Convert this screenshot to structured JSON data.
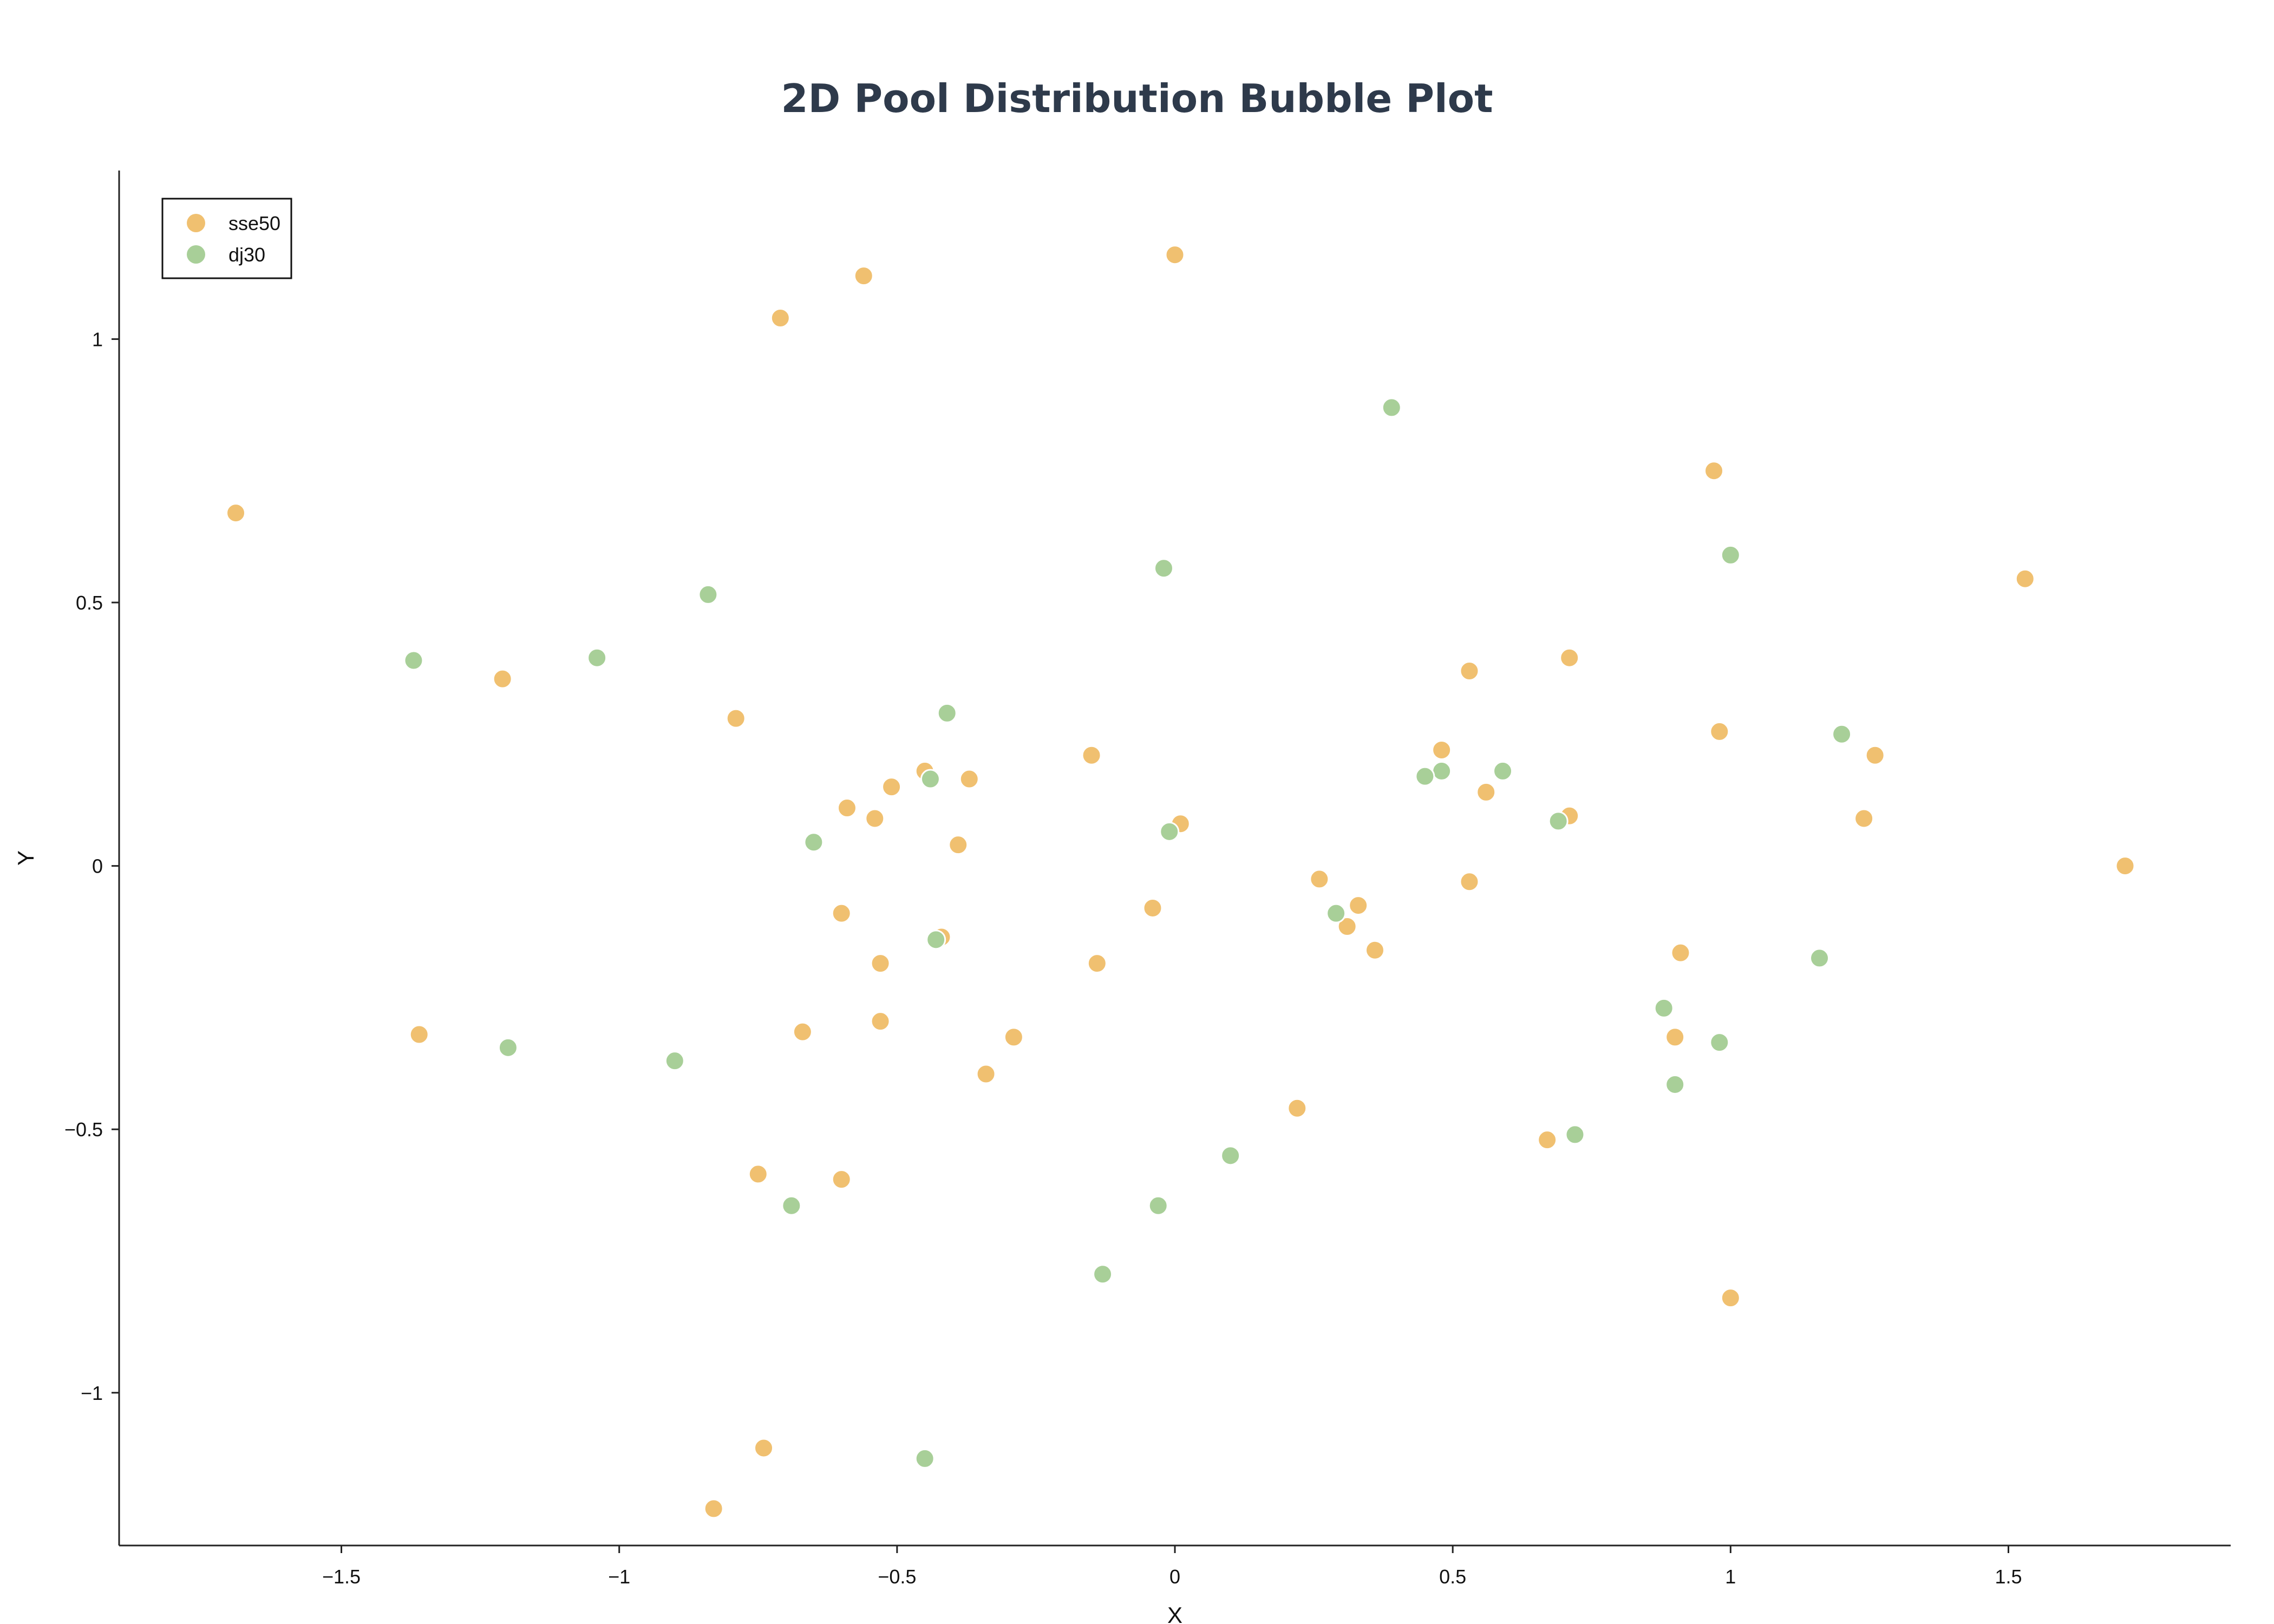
{
  "chart_data": {
    "type": "scatter",
    "title": "2D Pool Distribution Bubble Plot",
    "xlabel": "X",
    "ylabel": "Y",
    "xlim": [
      -1.9,
      1.9
    ],
    "ylim": [
      -1.29,
      1.32
    ],
    "xticks": [
      -1.5,
      -1,
      -0.5,
      0,
      0.5,
      1,
      1.5
    ],
    "xtick_labels": [
      "−1.5",
      "−1",
      "−0.5",
      "0",
      "0.5",
      "1",
      "1.5"
    ],
    "yticks": [
      -1,
      -0.5,
      0,
      0.5,
      1
    ],
    "ytick_labels": [
      "−1",
      "−0.5",
      "0",
      "0.5",
      "1"
    ],
    "grid": false,
    "legend_position": "top-left",
    "series": [
      {
        "name": "sse50",
        "color": "#f0c070",
        "points": [
          [
            -0.56,
            1.12
          ],
          [
            -0.71,
            1.04
          ],
          [
            0.0,
            1.16
          ],
          [
            -1.69,
            0.67
          ],
          [
            0.97,
            0.75
          ],
          [
            -1.21,
            0.355
          ],
          [
            1.53,
            0.545
          ],
          [
            0.53,
            0.37
          ],
          [
            0.71,
            0.395
          ],
          [
            -0.79,
            0.28
          ],
          [
            -0.15,
            0.21
          ],
          [
            0.98,
            0.255
          ],
          [
            1.26,
            0.21
          ],
          [
            -0.45,
            0.18
          ],
          [
            -0.37,
            0.165
          ],
          [
            -0.51,
            0.15
          ],
          [
            0.48,
            0.22
          ],
          [
            0.56,
            0.14
          ],
          [
            -0.59,
            0.11
          ],
          [
            -0.54,
            0.09
          ],
          [
            0.71,
            0.095
          ],
          [
            1.24,
            0.09
          ],
          [
            0.01,
            0.08
          ],
          [
            -0.39,
            0.04
          ],
          [
            1.71,
            0.0
          ],
          [
            0.26,
            -0.025
          ],
          [
            0.53,
            -0.03
          ],
          [
            -0.6,
            -0.09
          ],
          [
            -0.04,
            -0.08
          ],
          [
            0.33,
            -0.075
          ],
          [
            0.31,
            -0.115
          ],
          [
            -0.42,
            -0.135
          ],
          [
            0.36,
            -0.16
          ],
          [
            0.91,
            -0.165
          ],
          [
            -0.53,
            -0.185
          ],
          [
            -0.14,
            -0.185
          ],
          [
            -1.36,
            -0.32
          ],
          [
            -0.67,
            -0.315
          ],
          [
            -0.53,
            -0.295
          ],
          [
            -0.29,
            -0.325
          ],
          [
            0.9,
            -0.325
          ],
          [
            -0.34,
            -0.395
          ],
          [
            0.22,
            -0.46
          ],
          [
            0.67,
            -0.52
          ],
          [
            -0.75,
            -0.585
          ],
          [
            -0.6,
            -0.595
          ],
          [
            1.0,
            -0.82
          ],
          [
            -0.74,
            -1.105
          ],
          [
            -0.83,
            -1.22
          ]
        ]
      },
      {
        "name": "dj30",
        "color": "#a8cf98",
        "points": [
          [
            0.39,
            0.87
          ],
          [
            1.0,
            0.59
          ],
          [
            -0.02,
            0.565
          ],
          [
            -0.84,
            0.515
          ],
          [
            -1.37,
            0.39
          ],
          [
            -1.04,
            0.395
          ],
          [
            -0.41,
            0.29
          ],
          [
            1.2,
            0.25
          ],
          [
            0.59,
            0.18
          ],
          [
            0.48,
            0.18
          ],
          [
            0.45,
            0.17
          ],
          [
            -0.44,
            0.165
          ],
          [
            0.69,
            0.085
          ],
          [
            -0.01,
            0.065
          ],
          [
            -0.65,
            0.045
          ],
          [
            0.29,
            -0.09
          ],
          [
            -0.43,
            -0.14
          ],
          [
            1.16,
            -0.175
          ],
          [
            0.88,
            -0.27
          ],
          [
            -1.2,
            -0.345
          ],
          [
            0.98,
            -0.335
          ],
          [
            -0.9,
            -0.37
          ],
          [
            0.9,
            -0.415
          ],
          [
            0.72,
            -0.51
          ],
          [
            0.1,
            -0.55
          ],
          [
            -0.69,
            -0.645
          ],
          [
            -0.03,
            -0.645
          ],
          [
            -0.13,
            -0.775
          ],
          [
            -0.45,
            -1.125
          ]
        ]
      }
    ]
  }
}
